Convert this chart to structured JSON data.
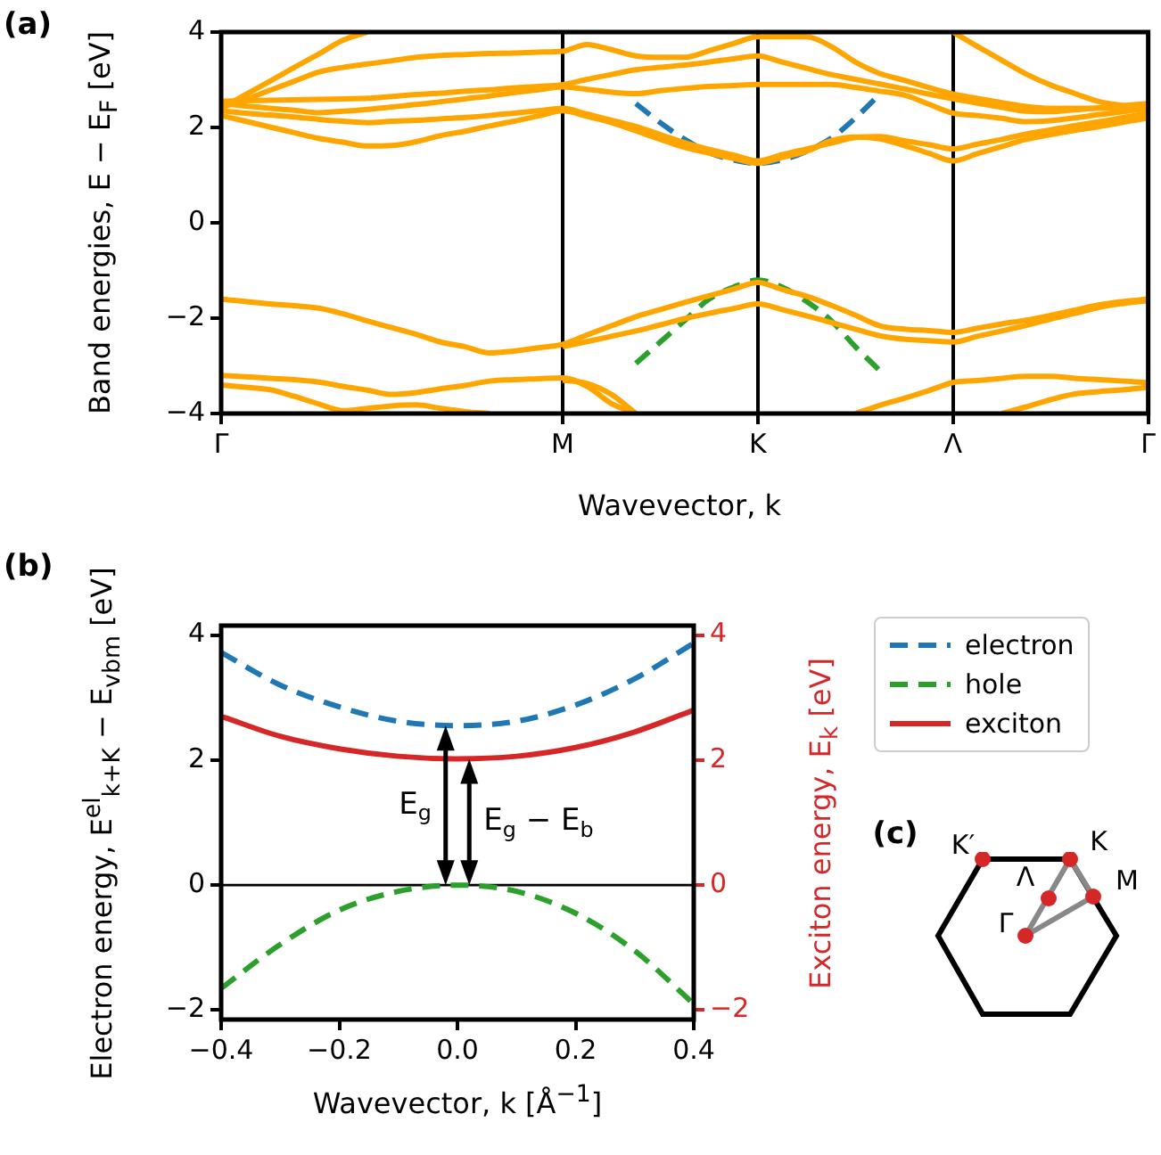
{
  "chart_data": [
    {
      "type": "line",
      "annotations": [
        "(a)"
      ],
      "xlabel": "Wavevector, k",
      "ylabel": "Band energies, E − E$_{F}$ [eV]",
      "categories": [
        "Γ",
        null,
        null,
        null,
        null,
        null,
        null,
        null,
        null,
        null,
        null,
        null,
        null,
        null,
        "M",
        null,
        null,
        null,
        null,
        null,
        null,
        null,
        "K",
        null,
        null,
        null,
        null,
        null,
        null,
        null,
        "Λ",
        null,
        null,
        null,
        null,
        null,
        null,
        null,
        "Γ"
      ],
      "ylim": [
        -4,
        4
      ],
      "yticks": [
        -4,
        -2,
        0,
        2,
        4
      ],
      "grid": "x",
      "series": [
        {
          "color": "#ffa500",
          "values": [
            2.25,
            2.13,
            2.01,
            1.89,
            1.77,
            1.69,
            1.61,
            1.62,
            1.7,
            1.83,
            1.92,
            2.03,
            2.13,
            2.24,
            2.35,
            2.23,
            2.1,
            1.93,
            1.75,
            1.58,
            1.46,
            1.35,
            1.25,
            1.37,
            1.5,
            1.72,
            1.8,
            1.76,
            1.62,
            1.46,
            1.3,
            1.45,
            1.6,
            1.75,
            1.85,
            1.94,
            2.02,
            2.11,
            2.2
          ]
        },
        {
          "color": "#ffa500",
          "values": [
            2.35,
            2.3,
            2.26,
            2.22,
            2.17,
            2.13,
            2.1,
            2.13,
            2.15,
            2.18,
            2.21,
            2.25,
            2.3,
            2.35,
            2.4,
            2.28,
            2.15,
            2.02,
            1.85,
            1.68,
            1.54,
            1.42,
            1.3,
            1.43,
            1.55,
            1.67,
            1.79,
            1.81,
            1.72,
            1.64,
            1.55,
            1.65,
            1.75,
            1.86,
            1.95,
            2.04,
            2.12,
            2.21,
            2.3
          ]
        },
        {
          "color": "#ffa500",
          "values": [
            2.5,
            2.45,
            2.4,
            2.36,
            2.31,
            2.34,
            2.38,
            2.43,
            2.48,
            2.54,
            2.6,
            2.66,
            2.73,
            2.79,
            2.85,
            2.8,
            2.74,
            2.71,
            2.77,
            2.82,
            2.86,
            2.88,
            2.9,
            2.9,
            2.9,
            2.9,
            2.84,
            2.76,
            2.68,
            2.49,
            2.3,
            2.25,
            2.19,
            2.12,
            2.14,
            2.2,
            2.27,
            2.33,
            2.4
          ]
        },
        {
          "color": "#ffa500",
          "values": [
            2.55,
            2.56,
            2.57,
            2.58,
            2.59,
            2.6,
            2.61,
            2.65,
            2.69,
            2.72,
            2.76,
            2.79,
            2.83,
            2.86,
            2.9,
            3.01,
            3.11,
            3.21,
            3.26,
            3.31,
            3.37,
            3.44,
            3.5,
            3.37,
            3.24,
            3.11,
            3.01,
            2.91,
            2.81,
            2.7,
            2.6,
            2.51,
            2.42,
            2.34,
            2.33,
            2.37,
            2.41,
            2.46,
            2.5
          ]
        },
        {
          "color": "#ffa500",
          "values": [
            2.42,
            2.59,
            2.78,
            2.97,
            3.16,
            3.26,
            3.33,
            3.4,
            3.47,
            3.51,
            3.53,
            3.55,
            3.56,
            3.58,
            3.6,
            3.74,
            3.63,
            3.5,
            3.47,
            3.47,
            3.61,
            3.76,
            3.9,
            3.9,
            3.9,
            3.7,
            3.37,
            3.13,
            2.99,
            2.84,
            2.7,
            2.61,
            2.52,
            2.44,
            2.4,
            2.4,
            2.4,
            2.4,
            2.43
          ]
        },
        {
          "color": "#ffa500",
          "values": [
            2.4,
            2.69,
            2.97,
            3.26,
            3.54,
            3.83,
            4.0,
            null,
            null,
            null,
            null,
            null,
            null,
            null,
            null,
            null,
            null,
            null,
            null,
            null,
            null,
            null,
            null,
            null,
            null,
            null,
            null,
            null,
            null,
            null,
            null,
            null,
            null,
            null,
            null,
            null,
            null,
            null,
            null
          ]
        },
        {
          "color": "#ffa500",
          "values": [
            null,
            null,
            null,
            null,
            null,
            null,
            null,
            null,
            null,
            null,
            null,
            null,
            null,
            null,
            null,
            null,
            null,
            null,
            null,
            null,
            null,
            null,
            null,
            null,
            null,
            null,
            null,
            null,
            null,
            null,
            4.0,
            3.7,
            3.41,
            3.12,
            2.89,
            2.71,
            2.54,
            2.46,
            2.38
          ]
        },
        {
          "color": "#ffa500",
          "values": [
            -1.6,
            -1.65,
            -1.7,
            -1.74,
            -1.79,
            -1.91,
            -2.06,
            -2.2,
            -2.34,
            -2.5,
            -2.6,
            -2.73,
            -2.69,
            -2.62,
            -2.55,
            -2.35,
            -2.16,
            -1.97,
            -1.82,
            -1.67,
            -1.53,
            -1.39,
            -1.25,
            -1.4,
            -1.54,
            -1.73,
            -1.94,
            -2.16,
            -2.23,
            -2.26,
            -2.3,
            -2.21,
            -2.12,
            -2.04,
            -1.94,
            -1.83,
            -1.72,
            -1.65,
            -1.6
          ]
        },
        {
          "color": "#ffa500",
          "values": [
            null,
            null,
            null,
            null,
            null,
            null,
            null,
            null,
            null,
            null,
            null,
            null,
            null,
            null,
            -2.6,
            -2.49,
            -2.38,
            -2.27,
            -2.14,
            -2.01,
            -1.9,
            -1.8,
            -1.7,
            -1.82,
            -1.95,
            -2.09,
            -2.23,
            -2.37,
            -2.44,
            -2.47,
            -2.5,
            -2.38,
            -2.27,
            -2.15,
            -2.02,
            -1.9,
            -1.77,
            -1.69,
            -1.63
          ]
        },
        {
          "color": "#ffa500",
          "values": [
            -3.2,
            -3.23,
            -3.26,
            -3.29,
            -3.34,
            -3.43,
            -3.51,
            -3.6,
            -3.56,
            -3.48,
            -3.41,
            -3.32,
            -3.29,
            -3.27,
            -3.25,
            -3.43,
            -3.79,
            -4.0,
            null,
            null,
            null,
            null,
            null,
            null,
            null,
            null,
            null,
            null,
            null,
            null,
            null,
            null,
            null,
            null,
            null,
            null,
            null,
            null,
            null
          ]
        },
        {
          "color": "#ffa500",
          "values": [
            -3.4,
            -3.45,
            -3.5,
            -3.64,
            -3.8,
            -3.94,
            -3.89,
            -3.84,
            -3.82,
            -3.89,
            -3.96,
            -4.0,
            null,
            null,
            null,
            null,
            null,
            null,
            null,
            null,
            null,
            null,
            null,
            null,
            null,
            null,
            null,
            null,
            null,
            null,
            null,
            null,
            null,
            null,
            null,
            null,
            null,
            null,
            null
          ]
        },
        {
          "color": "#ffa500",
          "values": [
            null,
            null,
            null,
            null,
            null,
            null,
            null,
            null,
            null,
            null,
            null,
            null,
            null,
            null,
            -3.3,
            -3.37,
            -3.6,
            -4.0,
            null,
            null,
            null,
            null,
            null,
            null,
            null,
            null,
            null,
            null,
            null,
            null,
            null,
            null,
            null,
            null,
            null,
            null,
            null,
            null,
            null
          ]
        },
        {
          "color": "#ffa500",
          "values": [
            null,
            null,
            null,
            null,
            null,
            null,
            null,
            null,
            null,
            null,
            null,
            null,
            null,
            null,
            null,
            null,
            null,
            null,
            null,
            null,
            null,
            null,
            null,
            null,
            null,
            null,
            -4.0,
            -3.83,
            -3.68,
            -3.52,
            -3.35,
            -3.31,
            -3.26,
            -3.22,
            -3.22,
            -3.26,
            -3.29,
            -3.32,
            -3.35
          ]
        },
        {
          "color": "#ffa500",
          "values": [
            null,
            null,
            null,
            null,
            null,
            null,
            null,
            null,
            null,
            null,
            null,
            null,
            null,
            null,
            null,
            null,
            null,
            null,
            null,
            null,
            null,
            null,
            null,
            null,
            null,
            null,
            null,
            null,
            null,
            null,
            null,
            null,
            -4.0,
            -3.86,
            -3.71,
            -3.59,
            -3.54,
            -3.5,
            -3.45
          ]
        },
        {
          "color": "#1f77b4",
          "line_style": "dashed",
          "values": [
            null,
            null,
            null,
            null,
            null,
            null,
            null,
            null,
            null,
            null,
            null,
            null,
            null,
            null,
            null,
            null,
            null,
            2.5,
            2.1,
            1.75,
            1.47,
            1.32,
            1.25,
            1.32,
            1.5,
            1.77,
            2.2,
            2.7,
            null,
            null,
            null,
            null,
            null,
            null,
            null,
            null,
            null,
            null,
            null
          ]
        },
        {
          "color": "#2ca02c",
          "line_style": "dashed",
          "values": [
            null,
            null,
            null,
            null,
            null,
            null,
            null,
            null,
            null,
            null,
            null,
            null,
            null,
            null,
            null,
            null,
            null,
            -2.95,
            -2.5,
            -2.05,
            -1.6,
            -1.35,
            -1.2,
            -1.35,
            -1.65,
            -2.05,
            -2.6,
            -3.1,
            null,
            null,
            null,
            null,
            null,
            null,
            null,
            null,
            null,
            null,
            null
          ]
        }
      ]
    },
    {
      "type": "line",
      "annotations": [
        "(b)",
        {
          "text": "E$_{g}$",
          "x": -0.02,
          "y": 2.55
        },
        {
          "text": "E$_{g}$ − E$_{b}$",
          "x": 0.02,
          "y": 2.02
        }
      ],
      "xlabel": "Wavevector, k [Å$^{−1}$]",
      "ylabel": "Electron energy, E$^{el}$$_{k+K}$ − E$_{vbm}$ [eV]",
      "y2label": "Exciton energy, E$_{k}$ [eV]",
      "x": [
        -0.4,
        -0.3,
        -0.2,
        -0.1,
        0,
        0.1,
        0.2,
        0.3,
        0.4
      ],
      "xlim": [
        -0.4,
        0.4
      ],
      "xticks": [
        -0.4,
        -0.2,
        {
          "value": 0,
          "label": "0.0"
        },
        0.2,
        0.4
      ],
      "ylim": [
        -2.15,
        4.15
      ],
      "yticks": [
        -2,
        0,
        2,
        4
      ],
      "y2lim": [
        -2.15,
        4.15
      ],
      "y2ticks": [
        -2,
        0,
        2,
        4
      ],
      "legend": "right",
      "ref_lines": [
        {
          "axis": "y",
          "value": 0,
          "color": "#000000"
        }
      ],
      "series": [
        {
          "name": "electron",
          "color": "#1f77b4",
          "line_style": "dashed",
          "values": [
            3.72,
            3.2,
            2.85,
            2.62,
            2.55,
            2.62,
            2.88,
            3.3,
            3.87
          ]
        },
        {
          "name": "hole",
          "color": "#2ca02c",
          "line_style": "dashed",
          "values": [
            -1.65,
            -0.95,
            -0.4,
            -0.1,
            0,
            -0.1,
            -0.45,
            -1.05,
            -1.9
          ]
        },
        {
          "name": "exciton",
          "color": "#d62728",
          "axis": "y2",
          "values": [
            2.7,
            2.38,
            2.18,
            2.06,
            2.02,
            2.06,
            2.2,
            2.45,
            2.8
          ]
        }
      ]
    },
    {
      "type": "other",
      "annotations": [
        "(c)",
        "K′",
        "K",
        "Λ",
        "M",
        "Γ"
      ]
    }
  ]
}
